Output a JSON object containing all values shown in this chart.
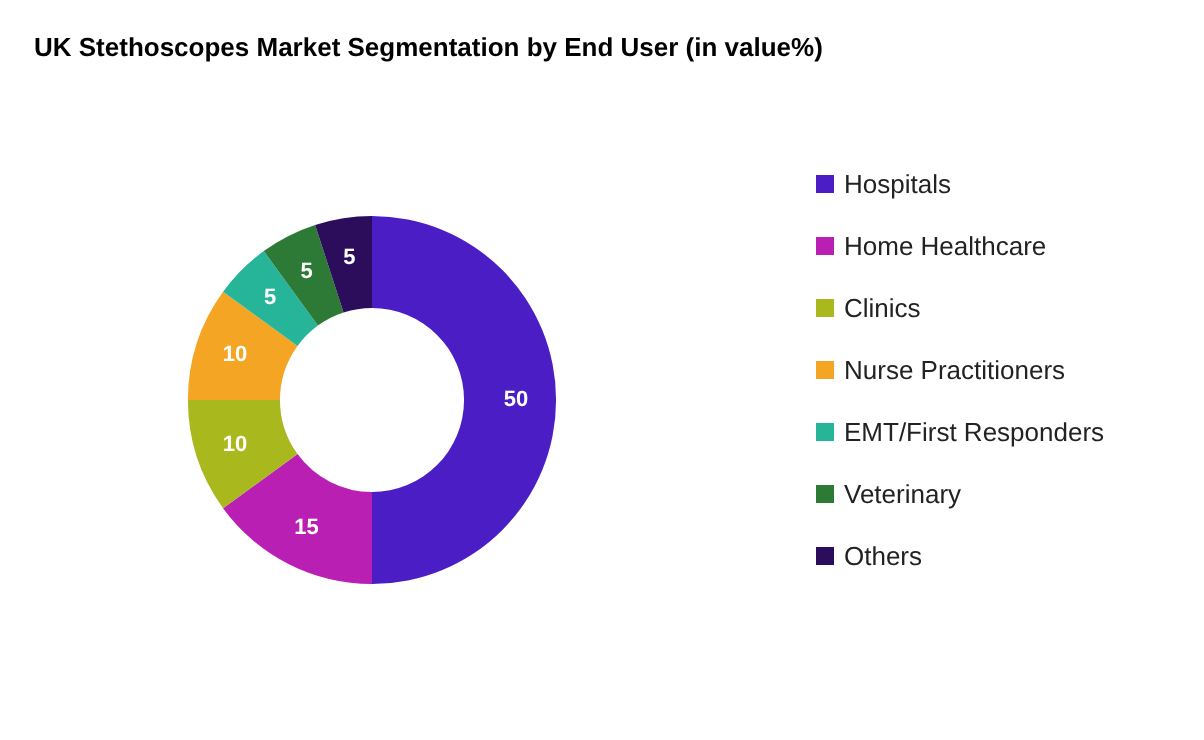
{
  "chart_data": {
    "type": "donut",
    "title": "UK Stethoscopes Market Segmentation by End User (in value%)",
    "categories": [
      "Hospitals",
      "Home Healthcare",
      "Clinics",
      "Nurse Practitioners",
      "EMT/First Responders",
      "Veterinary",
      "Others"
    ],
    "values": [
      50,
      15,
      10,
      10,
      5,
      5,
      5
    ],
    "colors": [
      "#4a1ec4",
      "#b91fb3",
      "#a9b81c",
      "#f5a524",
      "#26b598",
      "#2c7a35",
      "#2b0d5c"
    ],
    "data_labels": true,
    "legend": "right"
  }
}
